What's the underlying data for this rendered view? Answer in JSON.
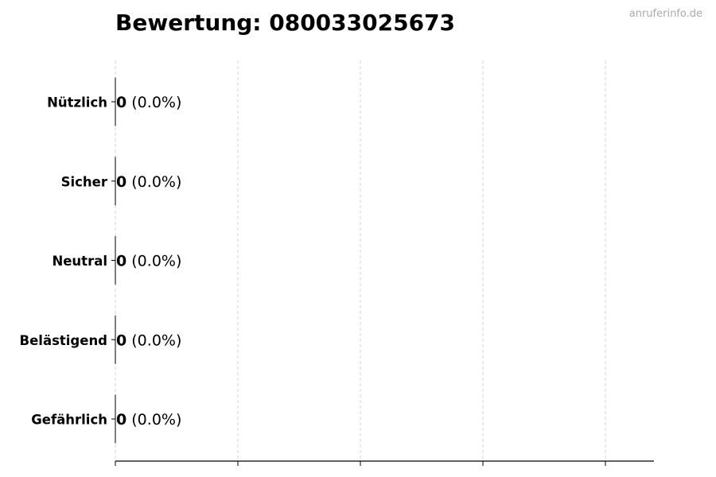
{
  "chart_data": {
    "type": "bar",
    "orientation": "horizontal",
    "title": "Bewertung: 080033025673",
    "watermark": "anruferinfo.de",
    "categories": [
      "Nützlich",
      "Sicher",
      "Neutral",
      "Belästigend",
      "Gefährlich"
    ],
    "values": [
      0,
      0,
      0,
      0,
      0
    ],
    "data_labels": [
      {
        "count": "0",
        "percent": "(0.0%)"
      },
      {
        "count": "0",
        "percent": "(0.0%)"
      },
      {
        "count": "0",
        "percent": "(0.0%)"
      },
      {
        "count": "0",
        "percent": "(0.0%)"
      },
      {
        "count": "0",
        "percent": "(0.0%)"
      }
    ],
    "xlabel": "",
    "ylabel": "",
    "x_tick_labels_shown": false,
    "grid": "vertical dashed",
    "colors": {
      "bar_edge": "#000000",
      "grid": "#cccccc",
      "watermark": "#aaaaaa"
    }
  }
}
